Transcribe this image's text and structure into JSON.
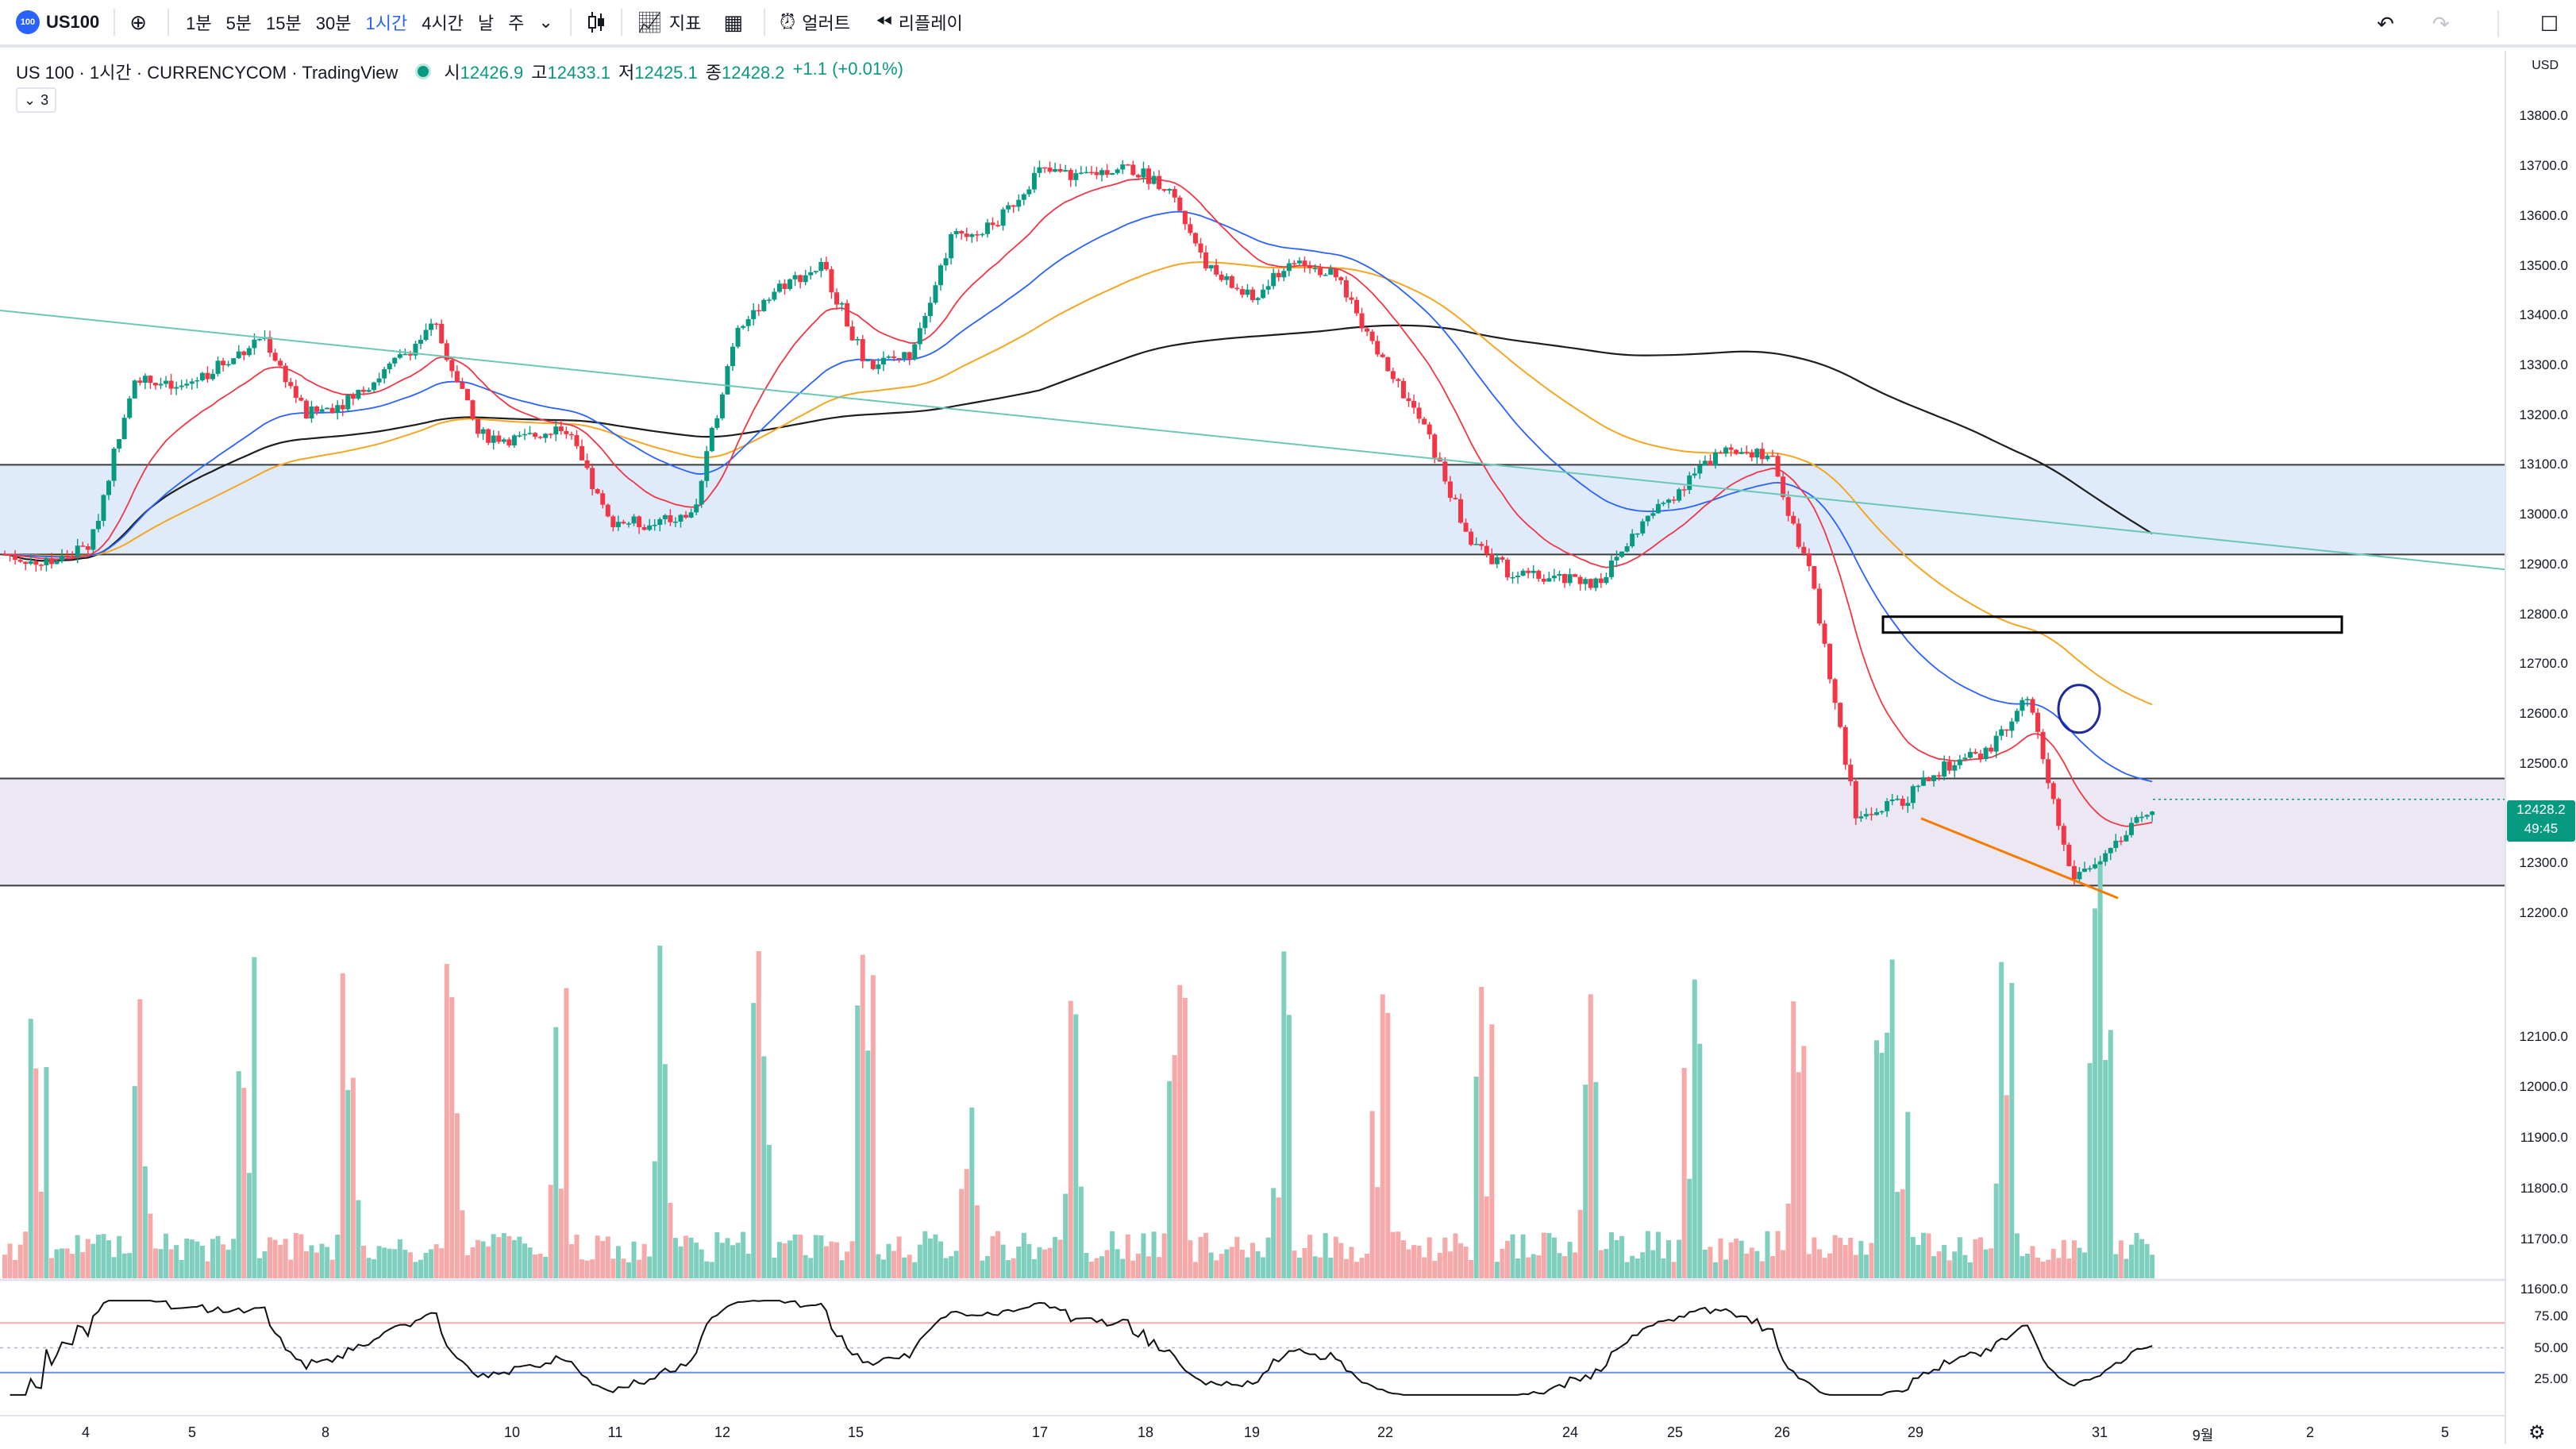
{
  "toolbar": {
    "symbol_badge": "100",
    "symbol": "US100",
    "intervals": [
      "1분",
      "5분",
      "15분",
      "30분",
      "1시간",
      "4시간",
      "날",
      "주"
    ],
    "active_interval": "1시간",
    "indicators_label": "지표",
    "alert_label": "얼러트",
    "replay_label": "리플레이",
    "icons": [
      "add-symbol-icon",
      "chevron-down-icon",
      "candles-icon",
      "indicators-icon",
      "templates-icon",
      "alert-icon",
      "replay-icon",
      "undo-icon",
      "redo-icon",
      "fullscreen-icon"
    ]
  },
  "legend": {
    "title": "US 100 · 1시간 · CURRENCYCOM · TradingView",
    "open_label": "시",
    "open": "12426.9",
    "high_label": "고",
    "high": "12433.1",
    "low_label": "저",
    "low": "12425.1",
    "close_label": "종",
    "close": "12428.2",
    "change": "+1.1 (+0.01%)",
    "collapsed_count": "3"
  },
  "price_axis": {
    "currency": "USD",
    "ticks": [
      "13800.0",
      "13700.0",
      "13600.0",
      "13500.0",
      "13400.0",
      "13300.0",
      "13200.0",
      "13100.0",
      "13000.0",
      "12900.0",
      "12800.0",
      "12700.0",
      "12600.0",
      "12500.0",
      "12300.0",
      "12200.0",
      "12100.0",
      "12000.0",
      "11900.0",
      "11800.0",
      "11700.0",
      "11600.0"
    ],
    "current_price": "12428.2",
    "countdown": "49:45"
  },
  "rsi_axis": {
    "ticks": [
      "75.00",
      "50.00",
      "25.00"
    ]
  },
  "time_axis": {
    "labels": [
      "4",
      "5",
      "8",
      "10",
      "11",
      "12",
      "15",
      "17",
      "18",
      "19",
      "22",
      "24",
      "25",
      "26",
      "29",
      "31",
      "9월",
      "2",
      "5"
    ]
  },
  "chart_data": {
    "type": "candlestick",
    "symbol": "US 100",
    "interval": "1시간",
    "ylim": [
      12160,
      13850
    ],
    "current": 12428.2,
    "price_path": [
      [
        0,
        12920
      ],
      [
        1,
        12900
      ],
      [
        2,
        12940
      ],
      [
        3,
        13280
      ],
      [
        4,
        13250
      ],
      [
        5,
        13300
      ],
      [
        6,
        13360
      ],
      [
        7,
        13200
      ],
      [
        8,
        13230
      ],
      [
        9,
        13300
      ],
      [
        10,
        13380
      ],
      [
        11,
        13160
      ],
      [
        12,
        13150
      ],
      [
        13,
        13180
      ],
      [
        14,
        12990
      ],
      [
        15,
        12980
      ],
      [
        16,
        13000
      ],
      [
        17,
        13380
      ],
      [
        18,
        13460
      ],
      [
        19,
        13500
      ],
      [
        20,
        13300
      ],
      [
        21,
        13320
      ],
      [
        22,
        13560
      ],
      [
        23,
        13580
      ],
      [
        24,
        13690
      ],
      [
        25,
        13680
      ],
      [
        26,
        13700
      ],
      [
        27,
        13660
      ],
      [
        28,
        13490
      ],
      [
        29,
        13430
      ],
      [
        30,
        13520
      ],
      [
        31,
        13470
      ],
      [
        32,
        13310
      ],
      [
        33,
        13170
      ],
      [
        34,
        12950
      ],
      [
        35,
        12880
      ],
      [
        36,
        12870
      ],
      [
        37,
        12860
      ],
      [
        38,
        12980
      ],
      [
        39,
        13060
      ],
      [
        40,
        13140
      ],
      [
        41,
        13120
      ],
      [
        42,
        12860
      ],
      [
        43,
        12390
      ],
      [
        44,
        12420
      ],
      [
        45,
        12490
      ],
      [
        46,
        12520
      ],
      [
        47,
        12630
      ],
      [
        48,
        12270
      ],
      [
        49,
        12330
      ],
      [
        50,
        12428
      ]
    ],
    "overlays": [
      "ema-red",
      "ema-blue",
      "ema-orange",
      "sma-black"
    ],
    "support_zones": [
      [
        12920,
        13100
      ],
      [
        12255,
        12470
      ]
    ],
    "volume_scale": [
      11560,
      12140
    ],
    "rsi": {
      "levels": [
        70,
        30
      ],
      "last": 50
    }
  }
}
